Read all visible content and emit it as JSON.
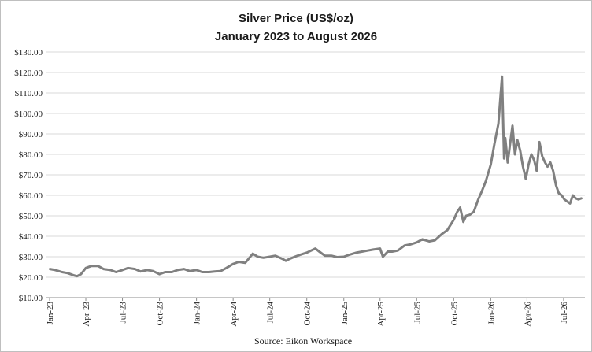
{
  "chart_data": {
    "type": "line",
    "title": "Silver Price (US$/oz)",
    "subtitle": "January 2023 to August 2026",
    "source": "Source: Eikon Workspace",
    "ylim": [
      10,
      130
    ],
    "yticks": [
      10,
      20,
      30,
      40,
      50,
      60,
      70,
      80,
      90,
      100,
      110,
      120,
      130
    ],
    "ytick_labels": [
      "$10.00",
      "$20.00",
      "$30.00",
      "$40.00",
      "$50.00",
      "$60.00",
      "$70.00",
      "$80.00",
      "$90.00",
      "$100.00",
      "$110.00",
      "$120.00",
      "$130.00"
    ],
    "xticks": [
      "Jan-23",
      "Apr-23",
      "Jul-23",
      "Oct-23",
      "Jan-24",
      "Apr-24",
      "Jul-24",
      "Oct-24",
      "Jan-25",
      "Apr-25",
      "Jul-25",
      "Oct-25",
      "Jan-26",
      "Apr-26",
      "Jul-26"
    ],
    "grid": true,
    "line_color": "#808080",
    "series": [
      {
        "x": [
          "2023-01-02",
          "2023-01-15",
          "2023-02-01",
          "2023-02-15",
          "2023-03-01",
          "2023-03-10",
          "2023-03-20",
          "2023-04-01",
          "2023-04-15",
          "2023-05-01",
          "2023-05-15",
          "2023-06-01",
          "2023-06-15",
          "2023-07-01",
          "2023-07-15",
          "2023-08-01",
          "2023-08-15",
          "2023-09-01",
          "2023-09-15",
          "2023-10-01",
          "2023-10-15",
          "2023-11-01",
          "2023-11-15",
          "2023-12-01",
          "2023-12-15",
          "2024-01-01",
          "2024-01-15",
          "2024-02-01",
          "2024-02-15",
          "2024-03-01",
          "2024-03-15",
          "2024-04-01",
          "2024-04-15",
          "2024-05-01",
          "2024-05-20",
          "2024-06-01",
          "2024-06-15",
          "2024-07-01",
          "2024-07-15",
          "2024-08-01",
          "2024-08-10",
          "2024-08-20",
          "2024-09-01",
          "2024-09-15",
          "2024-10-01",
          "2024-10-22",
          "2024-11-01",
          "2024-11-15",
          "2024-12-01",
          "2024-12-15",
          "2025-01-01",
          "2025-01-15",
          "2025-02-01",
          "2025-02-15",
          "2025-03-01",
          "2025-03-15",
          "2025-04-01",
          "2025-04-08",
          "2025-04-20",
          "2025-05-01",
          "2025-05-15",
          "2025-06-01",
          "2025-06-15",
          "2025-07-01",
          "2025-07-15",
          "2025-08-01",
          "2025-08-15",
          "2025-09-01",
          "2025-09-15",
          "2025-10-01",
          "2025-10-10",
          "2025-10-17",
          "2025-10-25",
          "2025-11-01",
          "2025-11-10",
          "2025-11-20",
          "2025-12-01",
          "2025-12-10",
          "2025-12-20",
          "2026-01-01",
          "2026-01-10",
          "2026-01-20",
          "2026-01-29",
          "2026-02-03",
          "2026-02-06",
          "2026-02-12",
          "2026-02-18",
          "2026-02-24",
          "2026-03-02",
          "2026-03-08",
          "2026-03-15",
          "2026-03-22",
          "2026-03-29",
          "2026-04-05",
          "2026-04-12",
          "2026-04-19",
          "2026-04-25",
          "2026-05-02",
          "2026-05-09",
          "2026-05-16",
          "2026-05-22",
          "2026-05-29",
          "2026-06-05",
          "2026-06-12",
          "2026-06-19",
          "2026-06-26",
          "2026-07-03",
          "2026-07-10",
          "2026-07-17",
          "2026-07-24",
          "2026-07-31",
          "2026-08-07",
          "2026-08-14"
        ],
        "values": [
          24.0,
          23.5,
          22.5,
          22.0,
          21.0,
          20.5,
          21.5,
          24.5,
          25.5,
          25.5,
          24.0,
          23.5,
          22.5,
          23.5,
          24.5,
          24.0,
          22.8,
          23.5,
          23.0,
          21.5,
          22.5,
          22.5,
          23.5,
          24.0,
          23.0,
          23.5,
          22.5,
          22.5,
          22.8,
          23.0,
          24.5,
          26.5,
          27.5,
          27.0,
          31.5,
          30.0,
          29.5,
          30.0,
          30.5,
          29.0,
          28.0,
          29.0,
          30.0,
          31.0,
          32.0,
          34.0,
          32.5,
          30.5,
          30.5,
          29.8,
          30.0,
          31.0,
          32.0,
          32.5,
          33.0,
          33.5,
          34.0,
          30.0,
          32.5,
          32.5,
          33.0,
          35.5,
          36.0,
          37.0,
          38.5,
          37.5,
          38.0,
          41.0,
          43.0,
          48.0,
          52.0,
          54.0,
          47.0,
          50.0,
          50.5,
          52.0,
          58.0,
          62.0,
          67.0,
          75.0,
          85.0,
          95.0,
          118.0,
          78.0,
          88.0,
          76.0,
          85.0,
          94.0,
          80.0,
          87.0,
          82.0,
          74.0,
          68.0,
          75.0,
          80.0,
          77.0,
          72.0,
          86.0,
          79.0,
          76.0,
          74.0,
          76.0,
          72.0,
          65.0,
          61.0,
          60.0,
          58.0,
          57.0,
          56.0,
          60.0,
          58.5,
          58.0,
          58.5
        ]
      }
    ]
  }
}
